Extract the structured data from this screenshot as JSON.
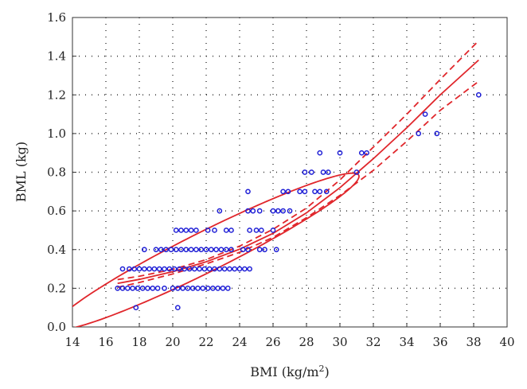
{
  "chart_data": {
    "type": "scatter",
    "xlabel": "BMI (kg/m",
    "xlabel_sup": "2",
    "xlabel_end": ")",
    "ylabel": "BML (kg)",
    "xlim": [
      14,
      40
    ],
    "ylim": [
      0.0,
      1.6
    ],
    "x_ticks": [
      14,
      16,
      18,
      20,
      22,
      24,
      26,
      28,
      30,
      32,
      34,
      36,
      38,
      40
    ],
    "y_ticks": [
      "0.0",
      "0.2",
      "0.4",
      "0.6",
      "0.8",
      "1.0",
      "1.2",
      "1.4",
      "1.6"
    ],
    "grid": true,
    "colors": {
      "points": "#1f1fd6",
      "fit": "#e0262b"
    },
    "points": [
      [
        16.7,
        0.2
      ],
      [
        17.0,
        0.2
      ],
      [
        17.3,
        0.2
      ],
      [
        17.6,
        0.2
      ],
      [
        17.9,
        0.2
      ],
      [
        18.2,
        0.2
      ],
      [
        18.5,
        0.2
      ],
      [
        18.8,
        0.2
      ],
      [
        19.1,
        0.2
      ],
      [
        19.5,
        0.2
      ],
      [
        20.0,
        0.2
      ],
      [
        20.3,
        0.2
      ],
      [
        20.6,
        0.2
      ],
      [
        20.9,
        0.2
      ],
      [
        21.2,
        0.2
      ],
      [
        21.5,
        0.2
      ],
      [
        21.8,
        0.2
      ],
      [
        22.1,
        0.2
      ],
      [
        22.4,
        0.2
      ],
      [
        22.7,
        0.2
      ],
      [
        23.0,
        0.2
      ],
      [
        23.3,
        0.2
      ],
      [
        17.8,
        0.1
      ],
      [
        20.3,
        0.1
      ],
      [
        17.0,
        0.3
      ],
      [
        17.4,
        0.3
      ],
      [
        17.7,
        0.3
      ],
      [
        18.0,
        0.3
      ],
      [
        18.3,
        0.3
      ],
      [
        18.6,
        0.3
      ],
      [
        18.9,
        0.3
      ],
      [
        19.2,
        0.3
      ],
      [
        19.5,
        0.3
      ],
      [
        19.8,
        0.3
      ],
      [
        20.1,
        0.3
      ],
      [
        20.4,
        0.3
      ],
      [
        20.7,
        0.3
      ],
      [
        21.0,
        0.3
      ],
      [
        21.3,
        0.3
      ],
      [
        21.6,
        0.3
      ],
      [
        21.9,
        0.3
      ],
      [
        22.2,
        0.3
      ],
      [
        22.5,
        0.3
      ],
      [
        22.8,
        0.3
      ],
      [
        23.1,
        0.3
      ],
      [
        23.4,
        0.3
      ],
      [
        23.7,
        0.3
      ],
      [
        24.0,
        0.3
      ],
      [
        24.3,
        0.3
      ],
      [
        24.6,
        0.3
      ],
      [
        18.3,
        0.4
      ],
      [
        19.0,
        0.4
      ],
      [
        19.3,
        0.4
      ],
      [
        19.6,
        0.4
      ],
      [
        19.9,
        0.4
      ],
      [
        20.2,
        0.4
      ],
      [
        20.5,
        0.4
      ],
      [
        20.8,
        0.4
      ],
      [
        21.1,
        0.4
      ],
      [
        21.4,
        0.4
      ],
      [
        21.7,
        0.4
      ],
      [
        22.0,
        0.4
      ],
      [
        22.3,
        0.4
      ],
      [
        22.6,
        0.4
      ],
      [
        22.9,
        0.4
      ],
      [
        23.2,
        0.4
      ],
      [
        23.5,
        0.4
      ],
      [
        24.2,
        0.4
      ],
      [
        24.5,
        0.4
      ],
      [
        25.2,
        0.4
      ],
      [
        25.5,
        0.4
      ],
      [
        26.2,
        0.4
      ],
      [
        20.2,
        0.5
      ],
      [
        20.5,
        0.5
      ],
      [
        20.8,
        0.5
      ],
      [
        21.1,
        0.5
      ],
      [
        21.4,
        0.5
      ],
      [
        22.1,
        0.5
      ],
      [
        22.5,
        0.5
      ],
      [
        23.2,
        0.5
      ],
      [
        23.5,
        0.5
      ],
      [
        24.6,
        0.5
      ],
      [
        25.0,
        0.5
      ],
      [
        25.3,
        0.5
      ],
      [
        26.0,
        0.5
      ],
      [
        22.8,
        0.6
      ],
      [
        24.5,
        0.6
      ],
      [
        24.8,
        0.6
      ],
      [
        25.2,
        0.6
      ],
      [
        26.0,
        0.6
      ],
      [
        26.3,
        0.6
      ],
      [
        26.6,
        0.6
      ],
      [
        27.0,
        0.6
      ],
      [
        24.5,
        0.7
      ],
      [
        26.6,
        0.7
      ],
      [
        26.9,
        0.7
      ],
      [
        27.6,
        0.7
      ],
      [
        27.9,
        0.7
      ],
      [
        28.5,
        0.7
      ],
      [
        28.8,
        0.7
      ],
      [
        29.2,
        0.7
      ],
      [
        27.9,
        0.8
      ],
      [
        28.3,
        0.8
      ],
      [
        29.0,
        0.8
      ],
      [
        29.3,
        0.8
      ],
      [
        31.0,
        0.8
      ],
      [
        28.8,
        0.9
      ],
      [
        30.0,
        0.9
      ],
      [
        31.3,
        0.9
      ],
      [
        31.6,
        0.9
      ],
      [
        34.7,
        1.0
      ],
      [
        35.8,
        1.0
      ],
      [
        35.1,
        1.1
      ],
      [
        38.3,
        1.2
      ]
    ],
    "fit_curve": [
      [
        16.7,
        0.225
      ],
      [
        18,
        0.246
      ],
      [
        20,
        0.286
      ],
      [
        22,
        0.337
      ],
      [
        24,
        0.402
      ],
      [
        26,
        0.484
      ],
      [
        28,
        0.59
      ],
      [
        30,
        0.72
      ],
      [
        32,
        0.87
      ],
      [
        34,
        1.03
      ],
      [
        36,
        1.2
      ],
      [
        38.3,
        1.38
      ]
    ],
    "ci_upper": [
      [
        16.7,
        0.245
      ],
      [
        18,
        0.262
      ],
      [
        20,
        0.298
      ],
      [
        22,
        0.348
      ],
      [
        24,
        0.418
      ],
      [
        26,
        0.505
      ],
      [
        28,
        0.615
      ],
      [
        30,
        0.76
      ],
      [
        32,
        0.93
      ],
      [
        34,
        1.1
      ],
      [
        36,
        1.28
      ],
      [
        38.3,
        1.48
      ]
    ],
    "ci_lower": [
      [
        16.7,
        0.205
      ],
      [
        18,
        0.23
      ],
      [
        20,
        0.274
      ],
      [
        22,
        0.326
      ],
      [
        24,
        0.386
      ],
      [
        26,
        0.463
      ],
      [
        28,
        0.565
      ],
      [
        30,
        0.68
      ],
      [
        32,
        0.81
      ],
      [
        34,
        0.96
      ],
      [
        36,
        1.12
      ],
      [
        38.3,
        1.27
      ]
    ],
    "confidence_ellipse": {
      "center": [
        22.0,
        0.39
      ],
      "semi_major": 9.15,
      "semi_minor": 0.115,
      "slope": 0.0425
    }
  }
}
